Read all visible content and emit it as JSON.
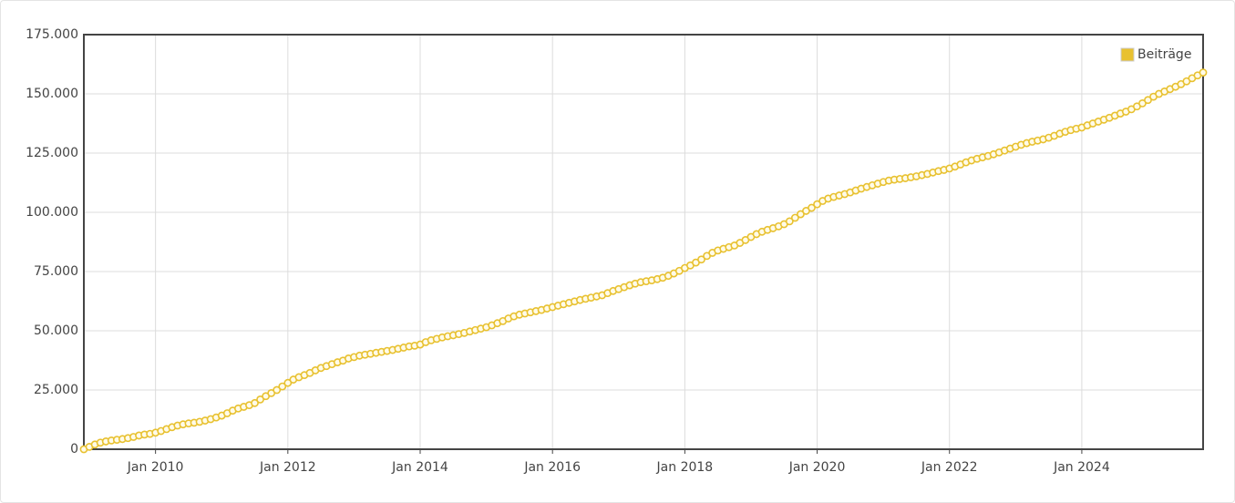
{
  "chart_data": {
    "type": "line",
    "x": [
      "2008-12",
      "2009-01",
      "2009-02",
      "2009-03",
      "2009-04",
      "2009-05",
      "2009-06",
      "2009-07",
      "2009-08",
      "2009-09",
      "2009-10",
      "2009-11",
      "2009-12",
      "2010-01",
      "2010-02",
      "2010-03",
      "2010-04",
      "2010-05",
      "2010-06",
      "2010-07",
      "2010-08",
      "2010-09",
      "2010-10",
      "2010-11",
      "2010-12",
      "2011-01",
      "2011-02",
      "2011-03",
      "2011-04",
      "2011-05",
      "2011-06",
      "2011-07",
      "2011-08",
      "2011-09",
      "2011-10",
      "2011-11",
      "2011-12",
      "2012-01",
      "2012-02",
      "2012-03",
      "2012-04",
      "2012-05",
      "2012-06",
      "2012-07",
      "2012-08",
      "2012-09",
      "2012-10",
      "2012-11",
      "2012-12",
      "2013-01",
      "2013-02",
      "2013-03",
      "2013-04",
      "2013-05",
      "2013-06",
      "2013-07",
      "2013-08",
      "2013-09",
      "2013-10",
      "2013-11",
      "2013-12",
      "2014-01",
      "2014-02",
      "2014-03",
      "2014-04",
      "2014-05",
      "2014-06",
      "2014-07",
      "2014-08",
      "2014-09",
      "2014-10",
      "2014-11",
      "2014-12",
      "2015-01",
      "2015-02",
      "2015-03",
      "2015-04",
      "2015-05",
      "2015-06",
      "2015-07",
      "2015-08",
      "2015-09",
      "2015-10",
      "2015-11",
      "2015-12",
      "2016-01",
      "2016-02",
      "2016-03",
      "2016-04",
      "2016-05",
      "2016-06",
      "2016-07",
      "2016-08",
      "2016-09",
      "2016-10",
      "2016-11",
      "2016-12",
      "2017-01",
      "2017-02",
      "2017-03",
      "2017-04",
      "2017-05",
      "2017-06",
      "2017-07",
      "2017-08",
      "2017-09",
      "2017-10",
      "2017-11",
      "2017-12",
      "2018-01",
      "2018-02",
      "2018-03",
      "2018-04",
      "2018-05",
      "2018-06",
      "2018-07",
      "2018-08",
      "2018-09",
      "2018-10",
      "2018-11",
      "2018-12",
      "2019-01",
      "2019-02",
      "2019-03",
      "2019-04",
      "2019-05",
      "2019-06",
      "2019-07",
      "2019-08",
      "2019-09",
      "2019-10",
      "2019-11",
      "2019-12",
      "2020-01",
      "2020-02",
      "2020-03",
      "2020-04",
      "2020-05",
      "2020-06",
      "2020-07",
      "2020-08",
      "2020-09",
      "2020-10",
      "2020-11",
      "2020-12",
      "2021-01",
      "2021-02",
      "2021-03",
      "2021-04",
      "2021-05",
      "2021-06",
      "2021-07",
      "2021-08",
      "2021-09",
      "2021-10",
      "2021-11",
      "2021-12",
      "2022-01",
      "2022-02",
      "2022-03",
      "2022-04",
      "2022-05",
      "2022-06",
      "2022-07",
      "2022-08",
      "2022-09",
      "2022-10",
      "2022-11",
      "2022-12",
      "2023-01",
      "2023-02",
      "2023-03",
      "2023-04",
      "2023-05",
      "2023-06",
      "2023-07",
      "2023-08",
      "2023-09",
      "2023-10",
      "2023-11",
      "2023-12",
      "2024-01",
      "2024-02",
      "2024-03",
      "2024-04",
      "2024-05",
      "2024-06",
      "2024-07",
      "2024-08",
      "2024-09",
      "2024-10",
      "2024-11",
      "2024-12",
      "2025-01",
      "2025-02",
      "2025-03",
      "2025-04",
      "2025-05",
      "2025-06",
      "2025-07",
      "2025-08",
      "2025-09",
      "2025-10",
      "2025-11"
    ],
    "series": [
      {
        "name": "Beiträge",
        "color": "#e8c130",
        "values": [
          0,
          1000,
          2000,
          2800,
          3300,
          3700,
          4000,
          4300,
          4700,
          5200,
          5800,
          6200,
          6500,
          7000,
          7700,
          8500,
          9300,
          10000,
          10500,
          10900,
          11200,
          11600,
          12100,
          12700,
          13400,
          14200,
          15200,
          16300,
          17200,
          17900,
          18600,
          19500,
          21000,
          22400,
          23700,
          25000,
          26500,
          28000,
          29400,
          30400,
          31300,
          32200,
          33300,
          34300,
          35100,
          35900,
          36700,
          37400,
          38300,
          38900,
          39500,
          39900,
          40300,
          40700,
          41100,
          41500,
          41900,
          42400,
          42900,
          43400,
          43700,
          44200,
          45200,
          46000,
          46600,
          47200,
          47700,
          48100,
          48600,
          49100,
          49700,
          50300,
          50900,
          51500,
          52300,
          53200,
          54100,
          55200,
          56100,
          56800,
          57300,
          57800,
          58300,
          58800,
          59400,
          60000,
          60600,
          61200,
          61800,
          62400,
          63000,
          63500,
          64000,
          64500,
          65000,
          65900,
          66800,
          67600,
          68400,
          69200,
          69900,
          70500,
          70900,
          71300,
          71800,
          72400,
          73200,
          74200,
          75300,
          76500,
          77600,
          78800,
          80100,
          81600,
          82900,
          83900,
          84600,
          85300,
          86000,
          87100,
          88300,
          89600,
          90800,
          91800,
          92600,
          93300,
          94100,
          95000,
          96200,
          97700,
          99200,
          100600,
          101900,
          103400,
          104800,
          105800,
          106500,
          107100,
          107700,
          108400,
          109200,
          110000,
          110700,
          111400,
          112100,
          112800,
          113400,
          113800,
          114100,
          114400,
          114800,
          115200,
          115700,
          116200,
          116800,
          117400,
          117900,
          118500,
          119300,
          120200,
          121100,
          121900,
          122600,
          123200,
          123800,
          124500,
          125300,
          126100,
          126900,
          127700,
          128500,
          129200,
          129800,
          130300,
          130800,
          131500,
          132300,
          133200,
          134000,
          134700,
          135300,
          135800,
          136700,
          137500,
          138300,
          139100,
          139900,
          140800,
          141700,
          142500,
          143500,
          144700,
          146000,
          147400,
          148800,
          150000,
          151000,
          152000,
          153000,
          154100,
          155300,
          156600,
          157800,
          159000
        ]
      }
    ],
    "xlim": [
      "2008-12",
      "2025-11"
    ],
    "xticks": [
      {
        "value": "2010-01",
        "label": "Jan 2010"
      },
      {
        "value": "2012-01",
        "label": "Jan 2012"
      },
      {
        "value": "2014-01",
        "label": "Jan 2014"
      },
      {
        "value": "2016-01",
        "label": "Jan 2016"
      },
      {
        "value": "2018-01",
        "label": "Jan 2018"
      },
      {
        "value": "2020-01",
        "label": "Jan 2020"
      },
      {
        "value": "2022-01",
        "label": "Jan 2022"
      },
      {
        "value": "2024-01",
        "label": "Jan 2024"
      }
    ],
    "ylim": [
      0,
      175000
    ],
    "yticks": [
      0,
      {
        "value": 25000,
        "label": "25.000"
      },
      {
        "value": 50000,
        "label": "50.000"
      },
      {
        "value": 75000,
        "label": "75.000"
      },
      {
        "value": 100000,
        "label": "100.000"
      },
      {
        "value": 125000,
        "label": "125.000"
      },
      {
        "value": 150000,
        "label": "150.000"
      },
      {
        "value": 175000,
        "label": "175.000"
      }
    ],
    "grid": true,
    "legend": "top-right"
  }
}
